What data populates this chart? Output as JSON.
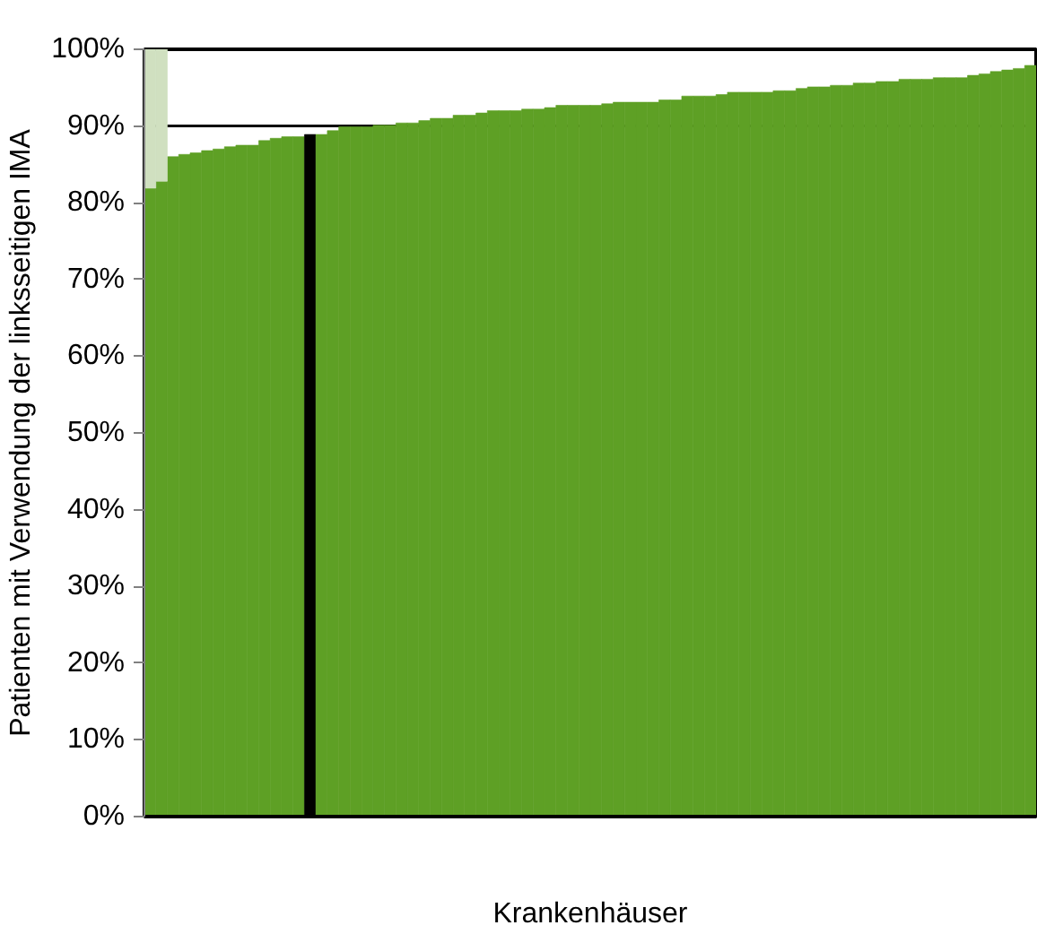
{
  "chart_data": {
    "type": "bar",
    "xlabel": "Krankenhäuser",
    "ylabel": "Patienten mit Verwendung der linksseitigen IMA",
    "categories": [
      null,
      null,
      null,
      null,
      null,
      null,
      null,
      null,
      null,
      null,
      null,
      null,
      null,
      null,
      null,
      null,
      null,
      null,
      null,
      null,
      null,
      null,
      null,
      null,
      null,
      null,
      null,
      null,
      null,
      null,
      null,
      null,
      null,
      null,
      null,
      null,
      null,
      null,
      null,
      null,
      null,
      null,
      null,
      null,
      null,
      null,
      null,
      null,
      null,
      null,
      null,
      null,
      null,
      null,
      null,
      null,
      null,
      null,
      null,
      null,
      null,
      null,
      null,
      null,
      null,
      null,
      null,
      null,
      null,
      null,
      null,
      null,
      null,
      null,
      null,
      null,
      null,
      null
    ],
    "stacked": true,
    "series": [
      {
        "colors": [
          "#5ea025",
          "#5ea025",
          "#5ea025",
          "#5ea025",
          "#5ea025",
          "#5ea025",
          "#5ea025",
          "#5ea025",
          "#5ea025",
          "#5ea025",
          "#5ea025",
          "#5ea025",
          "#5ea025",
          "#5ea025",
          "#000000",
          "#5ea025",
          "#5ea025",
          "#5ea025",
          "#5ea025",
          "#5ea025",
          "#5ea025",
          "#5ea025",
          "#5ea025",
          "#5ea025",
          "#5ea025",
          "#5ea025",
          "#5ea025",
          "#5ea025",
          "#5ea025",
          "#5ea025",
          "#5ea025",
          "#5ea025",
          "#5ea025",
          "#5ea025",
          "#5ea025",
          "#5ea025",
          "#5ea025",
          "#5ea025",
          "#5ea025",
          "#5ea025",
          "#5ea025",
          "#5ea025",
          "#5ea025",
          "#5ea025",
          "#5ea025",
          "#5ea025",
          "#5ea025",
          "#5ea025",
          "#5ea025",
          "#5ea025",
          "#5ea025",
          "#5ea025",
          "#5ea025",
          "#5ea025",
          "#5ea025",
          "#5ea025",
          "#5ea025",
          "#5ea025",
          "#5ea025",
          "#5ea025",
          "#5ea025",
          "#5ea025",
          "#5ea025",
          "#5ea025",
          "#5ea025",
          "#5ea025",
          "#5ea025",
          "#5ea025",
          "#5ea025",
          "#5ea025",
          "#5ea025",
          "#5ea025",
          "#5ea025",
          "#5ea025",
          "#5ea025",
          "#5ea025",
          "#5ea025",
          "#5ea025"
        ],
        "values": [
          81.9,
          82.8,
          86.0,
          86.3,
          86.5,
          86.8,
          87.0,
          87.3,
          87.5,
          87.5,
          88.1,
          88.4,
          88.6,
          88.6,
          88.9,
          88.9,
          89.4,
          89.9,
          89.9,
          89.9,
          90.1,
          90.1,
          90.4,
          90.4,
          90.7,
          91.0,
          91.0,
          91.4,
          91.4,
          91.7,
          92.0,
          92.0,
          92.0,
          92.2,
          92.2,
          92.4,
          92.7,
          92.7,
          92.7,
          92.7,
          92.9,
          93.1,
          93.1,
          93.1,
          93.1,
          93.4,
          93.4,
          93.9,
          93.9,
          93.9,
          94.1,
          94.4,
          94.4,
          94.4,
          94.4,
          94.6,
          94.6,
          94.9,
          95.1,
          95.1,
          95.3,
          95.3,
          95.6,
          95.6,
          95.8,
          95.8,
          96.1,
          96.1,
          96.1,
          96.3,
          96.3,
          96.3,
          96.6,
          96.8,
          97.1,
          97.3,
          97.5,
          97.9
        ]
      },
      {
        "color": "#d0e0c0",
        "values": [
          18.1,
          17.2,
          null,
          null,
          null,
          null,
          null,
          null,
          null,
          null,
          null,
          null,
          null,
          null,
          null,
          null,
          null,
          null,
          null,
          null,
          null,
          null,
          null,
          null,
          null,
          null,
          null,
          null,
          null,
          null,
          null,
          null,
          null,
          null,
          null,
          null,
          null,
          null,
          null,
          null,
          null,
          null,
          null,
          null,
          null,
          null,
          null,
          null,
          null,
          null,
          null,
          null,
          null,
          null,
          null,
          null,
          null,
          null,
          null,
          null,
          null,
          null,
          null,
          null,
          null,
          null,
          null,
          null,
          null,
          null,
          null,
          null,
          null,
          null,
          null,
          null,
          null,
          null
        ]
      }
    ],
    "ylim": [
      0,
      100
    ],
    "yticks": [
      {
        "value": 0,
        "label": "0%"
      },
      {
        "value": 10,
        "label": "10%"
      },
      {
        "value": 20,
        "label": "20%"
      },
      {
        "value": 30,
        "label": "30%"
      },
      {
        "value": 40,
        "label": "40%"
      },
      {
        "value": 50,
        "label": "50%"
      },
      {
        "value": 60,
        "label": "60%"
      },
      {
        "value": 70,
        "label": "70%"
      },
      {
        "value": 80,
        "label": "80%"
      },
      {
        "value": 90,
        "label": "90%"
      },
      {
        "value": 100,
        "label": "100%"
      }
    ],
    "ref_lines": [
      {
        "axis": "y",
        "value": 90,
        "color": "#000000"
      }
    ],
    "grid": false,
    "tick_labels": "y"
  }
}
